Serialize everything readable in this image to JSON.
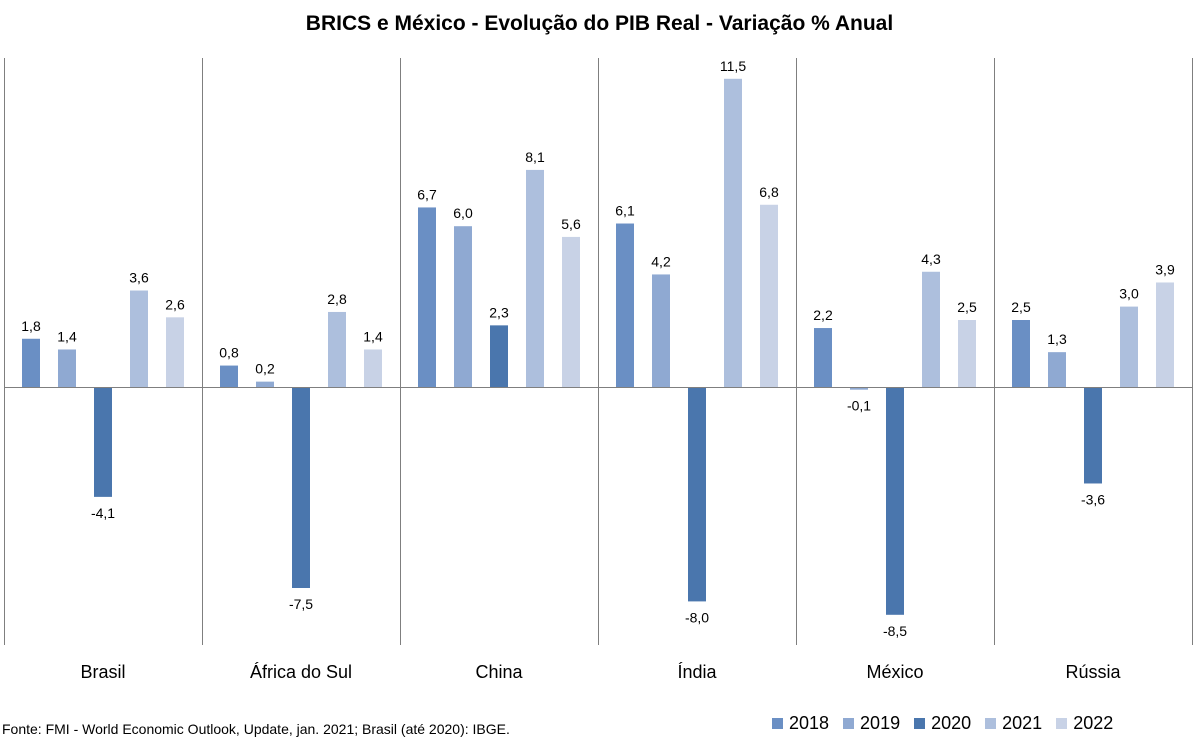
{
  "chart_data": {
    "type": "bar",
    "title": "BRICS e México - Evolução do PIB Real - Variação % Anual",
    "categories": [
      "Brasil",
      "África do Sul",
      "China",
      "Índia",
      "México",
      "Rússia"
    ],
    "series": [
      {
        "name": "2018",
        "color": "#6a8fc4",
        "values": [
          1.8,
          0.8,
          6.7,
          6.1,
          2.2,
          2.5
        ]
      },
      {
        "name": "2019",
        "color": "#8fa9d2",
        "values": [
          1.4,
          0.2,
          6.0,
          4.2,
          -0.1,
          1.3
        ]
      },
      {
        "name": "2020",
        "color": "#4a76ad",
        "values": [
          -4.1,
          -7.5,
          2.3,
          -8.0,
          -8.5,
          -3.6
        ]
      },
      {
        "name": "2021",
        "color": "#adbfdd",
        "values": [
          3.6,
          2.8,
          8.1,
          11.5,
          4.3,
          3.0
        ]
      },
      {
        "name": "2022",
        "color": "#c8d2e6",
        "values": [
          2.6,
          1.4,
          5.6,
          6.8,
          2.5,
          3.9
        ]
      }
    ],
    "data_labels": [
      [
        "1,8",
        "0,8",
        "6,7",
        "6,1",
        "2,2",
        "2,5"
      ],
      [
        "1,4",
        "0,2",
        "6,0",
        "4,2",
        "-0,1",
        "1,3"
      ],
      [
        "-4,1",
        "-7,5",
        "2,3",
        "-8,0",
        "-8,5",
        "-3,6"
      ],
      [
        "3,6",
        "2,8",
        "8,1",
        "11,5",
        "4,3",
        "3,0"
      ],
      [
        "2,6",
        "1,4",
        "5,6",
        "6,8",
        "2,5",
        "3,9"
      ]
    ],
    "ylim": [
      -9.5,
      12.6
    ],
    "legend_position": "bottom-right",
    "grid": false
  },
  "source_note": "Fonte: FMI - World Economic Outlook, Update, jan. 2021; Brasil (até 2020): IBGE."
}
